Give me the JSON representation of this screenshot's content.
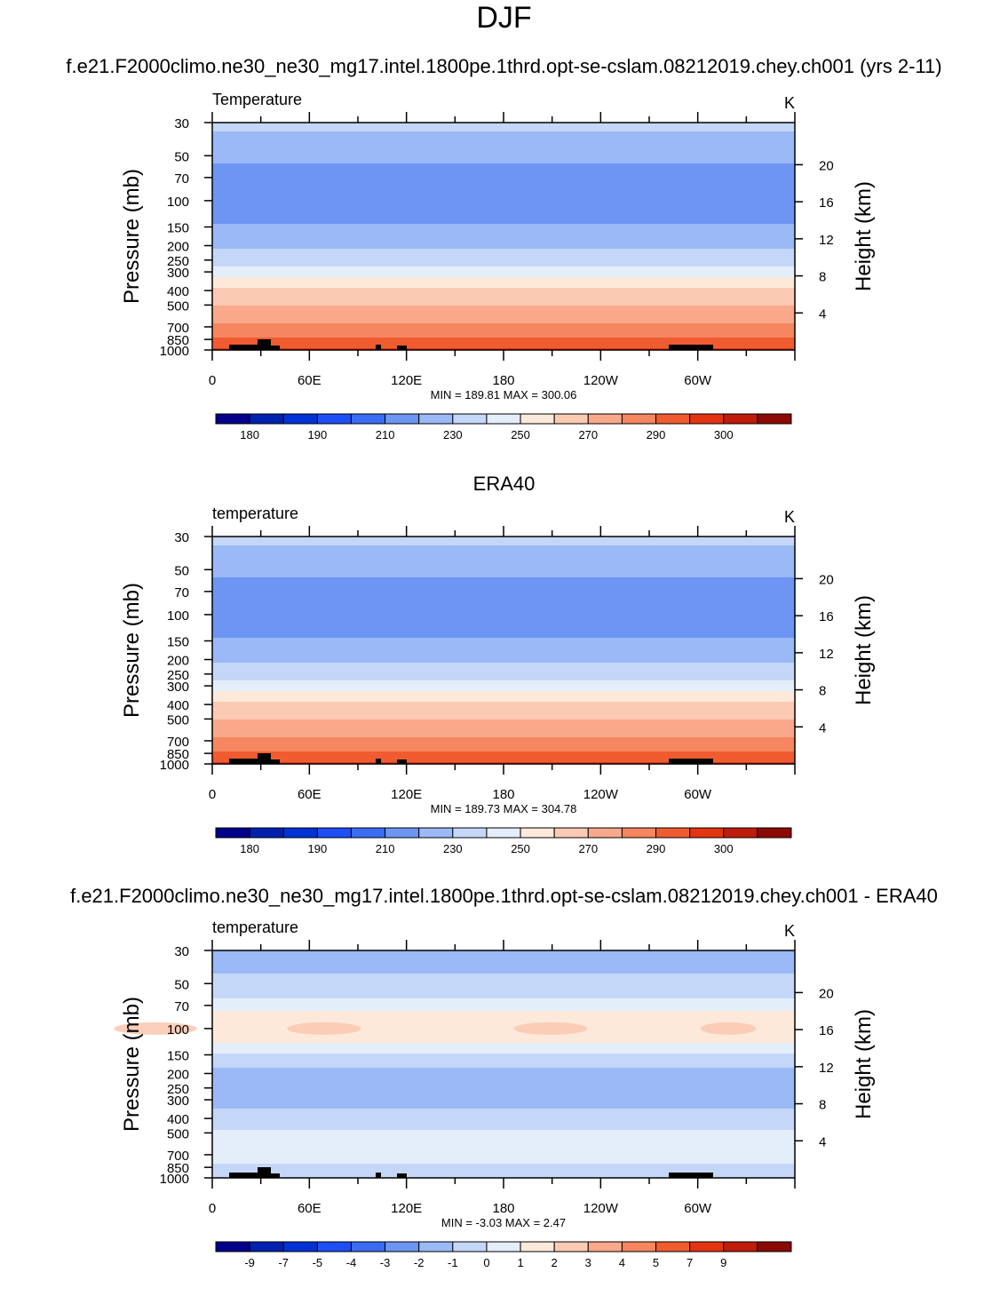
{
  "main_title": "DJF",
  "colors": {
    "temp_palette": [
      "#03008c",
      "#0021b0",
      "#0032d6",
      "#1e4ef5",
      "#3a6cf4",
      "#6d96f4",
      "#9ab9f6",
      "#c5d7f8",
      "#e4edfa",
      "#fde9d9",
      "#fbcab3",
      "#f9a889",
      "#f68660",
      "#f05c30",
      "#e33411",
      "#bf1c0a",
      "#8b0a03"
    ],
    "diff_palette": [
      "#03008c",
      "#0021b0",
      "#0032d6",
      "#1e4ef5",
      "#3a6cf4",
      "#6d96f4",
      "#9ab9f6",
      "#c5d7f8",
      "#e4edfa",
      "#fde9d9",
      "#fbcab3",
      "#f9a889",
      "#f68660",
      "#f05c30",
      "#e33411",
      "#bf1c0a",
      "#8b0a03"
    ]
  },
  "chart_data": [
    {
      "type": "heatmap",
      "panel_title": "f.e21.F2000climo.ne30_ne30_mg17.intel.1800pe.1thrd.opt-se-cslam.08212019.chey.ch001 (yrs 2-11)",
      "variable_label": "Temperature",
      "units": "K",
      "ylabel": "Pressure (mb)",
      "ylabel_right": "Height (km)",
      "pressure_ticks": [
        30,
        50,
        70,
        100,
        150,
        200,
        250,
        300,
        400,
        500,
        700,
        850,
        1000
      ],
      "height_ticks": [
        4,
        8,
        12,
        16,
        20
      ],
      "x_tick_labels": [
        "0",
        "60E",
        "120E",
        "180",
        "120W",
        "60W"
      ],
      "x_tick_lon": [
        0,
        60,
        120,
        180,
        240,
        300
      ],
      "xlim": [
        0,
        360
      ],
      "ylim_pressure": [
        30,
        1000
      ],
      "stats": "MIN = 189.81  MAX = 300.06",
      "colorbar_labels": [
        "180",
        "190",
        "210",
        "230",
        "250",
        "270",
        "290",
        "300"
      ],
      "contour_levels": [
        175,
        180,
        185,
        190,
        200,
        210,
        220,
        230,
        240,
        250,
        260,
        270,
        280,
        290,
        295,
        300
      ],
      "profile": [
        {
          "p": 30,
          "t": 222
        },
        {
          "p": 40,
          "t": 218
        },
        {
          "p": 50,
          "t": 214
        },
        {
          "p": 60,
          "t": 208
        },
        {
          "p": 70,
          "t": 206
        },
        {
          "p": 100,
          "t": 205
        },
        {
          "p": 120,
          "t": 206
        },
        {
          "p": 140,
          "t": 208
        },
        {
          "p": 150,
          "t": 212
        },
        {
          "p": 200,
          "t": 218
        },
        {
          "p": 250,
          "t": 226
        },
        {
          "p": 300,
          "t": 234
        },
        {
          "p": 350,
          "t": 245
        },
        {
          "p": 400,
          "t": 252
        },
        {
          "p": 500,
          "t": 260
        },
        {
          "p": 600,
          "t": 267
        },
        {
          "p": 700,
          "t": 272
        },
        {
          "p": 850,
          "t": 281
        },
        {
          "p": 925,
          "t": 286
        },
        {
          "p": 1000,
          "t": 292
        }
      ]
    },
    {
      "type": "heatmap",
      "panel_title": "ERA40",
      "variable_label": "temperature",
      "units": "K",
      "ylabel": "Pressure (mb)",
      "ylabel_right": "Height (km)",
      "pressure_ticks": [
        30,
        50,
        70,
        100,
        150,
        200,
        250,
        300,
        400,
        500,
        700,
        850,
        1000
      ],
      "height_ticks": [
        4,
        8,
        12,
        16,
        20
      ],
      "x_tick_labels": [
        "0",
        "60E",
        "120E",
        "180",
        "120W",
        "60W"
      ],
      "x_tick_lon": [
        0,
        60,
        120,
        180,
        240,
        300
      ],
      "xlim": [
        0,
        360
      ],
      "ylim_pressure": [
        30,
        1000
      ],
      "stats": "MIN = 189.73  MAX = 304.78",
      "colorbar_labels": [
        "180",
        "190",
        "210",
        "230",
        "250",
        "270",
        "290",
        "300"
      ],
      "contour_levels": [
        175,
        180,
        185,
        190,
        200,
        210,
        220,
        230,
        240,
        250,
        260,
        270,
        280,
        290,
        295,
        300
      ],
      "profile": [
        {
          "p": 30,
          "t": 222
        },
        {
          "p": 40,
          "t": 218
        },
        {
          "p": 50,
          "t": 214
        },
        {
          "p": 60,
          "t": 208
        },
        {
          "p": 70,
          "t": 206
        },
        {
          "p": 100,
          "t": 205
        },
        {
          "p": 120,
          "t": 206
        },
        {
          "p": 140,
          "t": 208
        },
        {
          "p": 150,
          "t": 212
        },
        {
          "p": 200,
          "t": 218
        },
        {
          "p": 250,
          "t": 226
        },
        {
          "p": 300,
          "t": 234
        },
        {
          "p": 350,
          "t": 245
        },
        {
          "p": 400,
          "t": 252
        },
        {
          "p": 500,
          "t": 260
        },
        {
          "p": 600,
          "t": 267
        },
        {
          "p": 700,
          "t": 272
        },
        {
          "p": 850,
          "t": 281
        },
        {
          "p": 925,
          "t": 287
        },
        {
          "p": 1000,
          "t": 293
        }
      ]
    },
    {
      "type": "heatmap",
      "panel_title": "f.e21.F2000climo.ne30_ne30_mg17.intel.1800pe.1thrd.opt-se-cslam.08212019.chey.ch001 - ERA40",
      "variable_label": "temperature",
      "units": "K",
      "ylabel": "Pressure (mb)",
      "ylabel_right": "Height (km)",
      "pressure_ticks": [
        30,
        50,
        70,
        100,
        150,
        200,
        250,
        300,
        400,
        500,
        700,
        850,
        1000
      ],
      "height_ticks": [
        4,
        8,
        12,
        16,
        20
      ],
      "x_tick_labels": [
        "0",
        "60E",
        "120E",
        "180",
        "120W",
        "60W"
      ],
      "x_tick_lon": [
        0,
        60,
        120,
        180,
        240,
        300
      ],
      "xlim": [
        0,
        360
      ],
      "ylim_pressure": [
        30,
        1000
      ],
      "stats": "MIN =  -3.03  MAX =   2.47",
      "colorbar_labels": [
        "-9",
        "-7",
        "-5",
        "-4",
        "-3",
        "-2",
        "-1",
        "0",
        "1",
        "2",
        "3",
        "4",
        "5",
        "7",
        "9"
      ],
      "contour_levels": [
        -11,
        -9,
        -7,
        -5,
        -4,
        -3,
        -2,
        -1,
        0,
        1,
        2,
        3,
        4,
        5,
        7,
        9
      ],
      "profile": [
        {
          "p": 30,
          "t": -2.4
        },
        {
          "p": 40,
          "t": -2.2
        },
        {
          "p": 50,
          "t": -1.6
        },
        {
          "p": 60,
          "t": -1.2
        },
        {
          "p": 70,
          "t": -0.5
        },
        {
          "p": 80,
          "t": 0.3
        },
        {
          "p": 100,
          "t": 0.6
        },
        {
          "p": 120,
          "t": 0.2
        },
        {
          "p": 140,
          "t": -0.6
        },
        {
          "p": 150,
          "t": -1.2
        },
        {
          "p": 200,
          "t": -2.3
        },
        {
          "p": 250,
          "t": -2.5
        },
        {
          "p": 300,
          "t": -2.3
        },
        {
          "p": 400,
          "t": -1.6
        },
        {
          "p": 500,
          "t": -0.8
        },
        {
          "p": 600,
          "t": -0.5
        },
        {
          "p": 700,
          "t": -0.6
        },
        {
          "p": 850,
          "t": -1.2
        },
        {
          "p": 1000,
          "t": -1.5
        }
      ]
    }
  ]
}
